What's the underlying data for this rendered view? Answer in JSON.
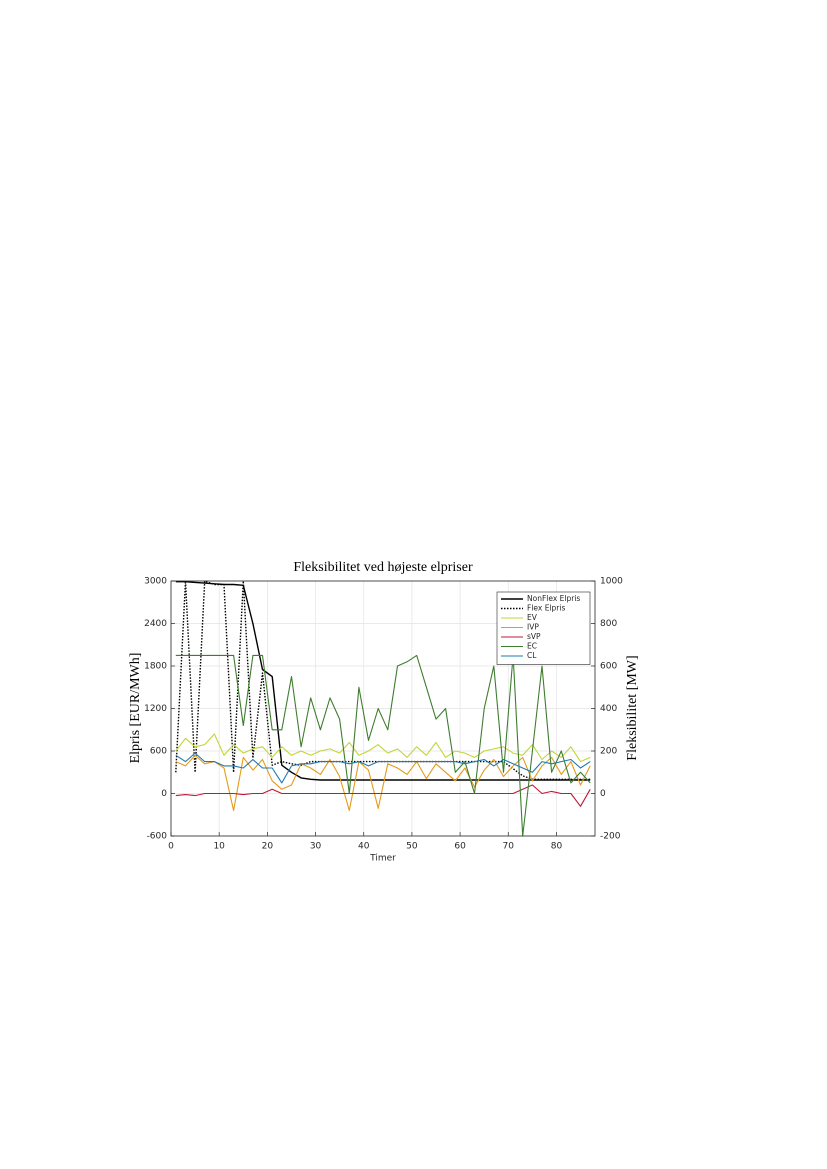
{
  "chart_data": {
    "type": "line",
    "title": "Fleksibilitet ved højeste elpriser",
    "xlabel": "Timer",
    "ylabel": "Elpris [EUR/MWh]",
    "y2label": "Fleksibilitet [MW]",
    "x": [
      1,
      3,
      5,
      7,
      9,
      11,
      13,
      15,
      17,
      19,
      21,
      23,
      25,
      27,
      29,
      31,
      33,
      35,
      37,
      39,
      41,
      43,
      45,
      47,
      49,
      51,
      53,
      55,
      57,
      59,
      61,
      63,
      65,
      67,
      69,
      71,
      73,
      75,
      77,
      79,
      81,
      83,
      85,
      87
    ],
    "xlim": [
      0,
      88
    ],
    "xticks": [
      0,
      10,
      20,
      30,
      40,
      50,
      60,
      70,
      80
    ],
    "ylim": [
      -600,
      3000
    ],
    "yticks": [
      -600,
      0,
      600,
      1200,
      1800,
      2400,
      3000
    ],
    "y2lim": [
      -200,
      1000
    ],
    "y2ticks": [
      -200,
      0,
      200,
      400,
      600,
      800,
      1000
    ],
    "grid": true,
    "legend": "upper right",
    "series": [
      {
        "name": "NonFlex Elpris",
        "color": "#000000",
        "style": "solid",
        "values": [
          2990,
          2990,
          2980,
          2970,
          2960,
          2950,
          2950,
          2940,
          2400,
          1750,
          1650,
          400,
          300,
          220,
          200,
          190,
          190,
          190,
          190,
          190,
          190,
          190,
          190,
          190,
          190,
          190,
          190,
          190,
          190,
          190,
          190,
          190,
          190,
          190,
          190,
          190,
          190,
          190,
          190,
          190,
          190,
          190,
          190,
          190
        ]
      },
      {
        "name": "Flex Elpris",
        "color": "#000000",
        "style": "dotted",
        "values": [
          300,
          3000,
          300,
          3000,
          2950,
          2950,
          300,
          3000,
          500,
          1700,
          400,
          450,
          420,
          400,
          450,
          450,
          450,
          450,
          450,
          450,
          450,
          450,
          450,
          450,
          450,
          450,
          450,
          450,
          450,
          450,
          450,
          450,
          450,
          450,
          450,
          350,
          250,
          200,
          200,
          200,
          200,
          200,
          200,
          200
        ]
      },
      {
        "name": "EV",
        "color": "#c3d43a",
        "axis": "y2",
        "values": [
          200,
          260,
          220,
          230,
          280,
          180,
          230,
          190,
          210,
          220,
          170,
          220,
          180,
          200,
          180,
          200,
          210,
          190,
          240,
          180,
          200,
          230,
          190,
          210,
          170,
          220,
          180,
          240,
          170,
          200,
          190,
          170,
          200,
          210,
          220,
          190,
          180,
          230,
          160,
          200,
          170,
          220,
          150,
          170
        ]
      },
      {
        "name": "IVP",
        "color": "#e39b1a",
        "axis": "y2",
        "values": [
          150,
          130,
          180,
          140,
          150,
          120,
          -80,
          170,
          110,
          160,
          60,
          20,
          40,
          140,
          120,
          90,
          160,
          80,
          -80,
          150,
          110,
          -70,
          140,
          120,
          90,
          150,
          70,
          140,
          100,
          60,
          120,
          30,
          110,
          160,
          80,
          130,
          170,
          60,
          130,
          170,
          90,
          150,
          40,
          130
        ]
      },
      {
        "name": "sVP",
        "color": "#c01838",
        "axis": "y2",
        "values": [
          -10,
          -5,
          -10,
          0,
          0,
          0,
          0,
          -5,
          0,
          0,
          20,
          0,
          0,
          0,
          0,
          0,
          0,
          0,
          0,
          0,
          0,
          0,
          0,
          0,
          0,
          0,
          0,
          0,
          0,
          0,
          0,
          0,
          0,
          0,
          0,
          0,
          20,
          40,
          0,
          10,
          0,
          0,
          -60,
          20
        ]
      },
      {
        "name": "EC",
        "color": "#3e7d2e",
        "axis": "y2",
        "values": [
          650,
          650,
          650,
          650,
          650,
          650,
          650,
          320,
          650,
          650,
          300,
          300,
          550,
          220,
          450,
          300,
          450,
          350,
          0,
          500,
          250,
          400,
          300,
          600,
          620,
          650,
          500,
          350,
          400,
          100,
          150,
          0,
          400,
          600,
          100,
          650,
          -200,
          200,
          600,
          100,
          200,
          50,
          100,
          50
        ]
      },
      {
        "name": "CL",
        "color": "#1f78b0",
        "axis": "y2",
        "values": [
          180,
          150,
          190,
          150,
          150,
          130,
          130,
          120,
          160,
          120,
          120,
          50,
          130,
          140,
          140,
          150,
          150,
          150,
          140,
          150,
          130,
          150,
          150,
          150,
          150,
          150,
          150,
          150,
          150,
          150,
          140,
          150,
          160,
          130,
          160,
          140,
          120,
          100,
          150,
          140,
          150,
          160,
          120,
          150
        ]
      }
    ]
  }
}
